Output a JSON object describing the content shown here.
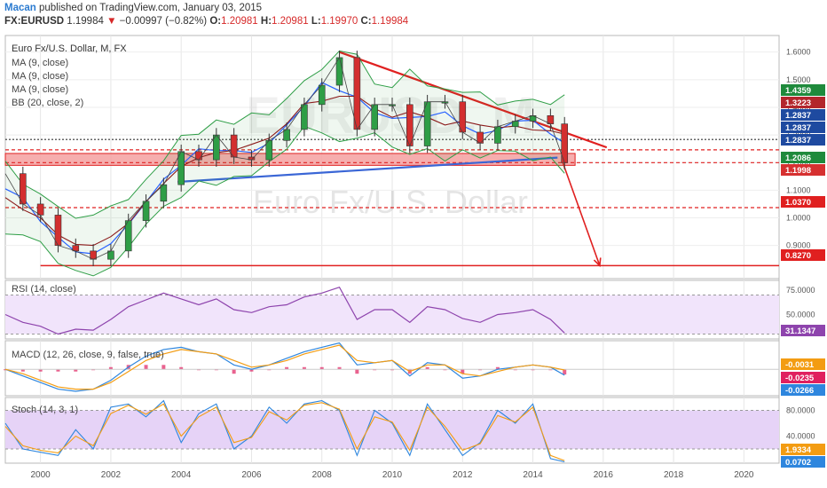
{
  "header": {
    "author": "Macan",
    "published": " published on TradingView.com, January 03, 2015",
    "symbol": "FX:EURUSD",
    "last": "1.19984",
    "arrow": "▼",
    "change": "−0.00997 (−0.82%)",
    "open_label": "O:",
    "open": "1.20981",
    "high_label": "H:",
    "high": "1.20981",
    "low_label": "L:",
    "low": "1.19970",
    "close_label": "C:",
    "close": "1.19984"
  },
  "chart_data": [
    {
      "type": "line",
      "panel": "price",
      "title": "Euro Fx/U.S. Dollar, M, FX",
      "watermark_symbol": "EURUSD, M",
      "watermark_name": "Euro Fx/U.S. Dollar",
      "legend": [
        "MA (9, close)",
        "MA (9, close)",
        "MA (9, close)",
        "BB (20, close, 2)"
      ],
      "x": [
        1999.0,
        1999.5,
        2000.0,
        2000.5,
        2001.0,
        2001.5,
        2002.0,
        2002.5,
        2003.0,
        2003.5,
        2004.0,
        2004.5,
        2005.0,
        2005.5,
        2006.0,
        2006.5,
        2007.0,
        2007.5,
        2008.0,
        2008.5,
        2009.0,
        2009.5,
        2010.0,
        2010.5,
        2011.0,
        2011.5,
        2012.0,
        2012.5,
        2013.0,
        2013.5,
        2014.0,
        2014.5,
        2014.9
      ],
      "series": [
        {
          "values": [
            1.16,
            1.05,
            1.01,
            0.9,
            0.88,
            0.85,
            0.88,
            0.99,
            1.06,
            1.12,
            1.24,
            1.21,
            1.3,
            1.22,
            1.21,
            1.28,
            1.32,
            1.41,
            1.48,
            1.58,
            1.32,
            1.41,
            1.41,
            1.26,
            1.42,
            1.42,
            1.31,
            1.27,
            1.33,
            1.35,
            1.37,
            1.34,
            1.2
          ],
          "color": "#444444"
        }
      ],
      "indicators": {
        "ma_colors": [
          "#2962ff",
          "#8b1a1a",
          "#222222"
        ],
        "bb_color": "#2e9e46"
      },
      "y_ticks": [
        "1.6000",
        "1.5000",
        "1.4000",
        "1.3000",
        "1.2000",
        "1.1000",
        "1.0000",
        "0.9000"
      ],
      "price_tags": [
        {
          "label": "1.4359",
          "color": "#1f8a3c"
        },
        {
          "label": "1.3223",
          "color": "#b3262c"
        },
        {
          "label": "1.2837",
          "color": "#1e4aa0"
        },
        {
          "label": "1.2837",
          "color": "#1e4aa0"
        },
        {
          "label": "1.2837",
          "color": "#1e4aa0"
        },
        {
          "label": "1.2086",
          "color": "#1f8a3c"
        },
        {
          "label": "1.1998",
          "color": "#d63030"
        },
        {
          "label": "1.0370",
          "color": "#e02020"
        },
        {
          "label": "0.8270",
          "color": "#e02020"
        }
      ],
      "levels": [
        {
          "price": 1.2837,
          "style": "dotted",
          "color": "#333333"
        },
        {
          "price": 1.246,
          "style": "dashed",
          "color": "#e02020"
        },
        {
          "price": 1.1998,
          "style": "dashed",
          "color": "#e02020"
        },
        {
          "price": 1.037,
          "style": "dashed",
          "color": "#e02020"
        },
        {
          "price": 0.827,
          "style": "solid",
          "color": "#e02020"
        }
      ],
      "zone": {
        "low": 1.19,
        "high": 1.233,
        "color": "#f4a0a0"
      },
      "trendlines": [
        {
          "x1": 2008.5,
          "y1": 1.6,
          "x2": 2016.1,
          "y2": 1.255,
          "color": "#e02020"
        },
        {
          "x1": 2003.9,
          "y1": 1.13,
          "x2": 2014.7,
          "y2": 1.218,
          "color": "#3a66d6"
        }
      ],
      "projection": {
        "x": [
          2014.85,
          2015.9
        ],
        "y": [
          1.2,
          0.827
        ],
        "color": "#e02020"
      }
    },
    {
      "type": "line",
      "panel": "rsi",
      "title": "RSI (14, close)",
      "x": [
        1999.0,
        1999.5,
        2000.0,
        2000.5,
        2001.0,
        2001.5,
        2002.0,
        2002.5,
        2003.0,
        2003.5,
        2004.0,
        2004.5,
        2005.0,
        2005.5,
        2006.0,
        2006.5,
        2007.0,
        2007.5,
        2008.0,
        2008.5,
        2009.0,
        2009.5,
        2010.0,
        2010.5,
        2011.0,
        2011.5,
        2012.0,
        2012.5,
        2013.0,
        2013.5,
        2014.0,
        2014.5,
        2014.9
      ],
      "series": [
        {
          "values": [
            50,
            42,
            38,
            30,
            35,
            34,
            45,
            58,
            65,
            72,
            66,
            60,
            66,
            55,
            52,
            58,
            60,
            68,
            72,
            78,
            45,
            55,
            55,
            42,
            58,
            55,
            46,
            42,
            50,
            52,
            55,
            45,
            31.1347
          ],
          "color": "#8e44ad"
        }
      ],
      "ylim": [
        25,
        85
      ],
      "bands": [
        30,
        70
      ],
      "y_ticks": [
        "75.0000",
        "50.0000"
      ],
      "last_label": "31.1347",
      "last_color": "#8e44ad"
    },
    {
      "type": "line",
      "panel": "macd",
      "title": "MACD (12, 26, close, 9, false, true)",
      "x": [
        1999.0,
        1999.5,
        2000.0,
        2000.5,
        2001.0,
        2001.5,
        2002.0,
        2002.5,
        2003.0,
        2003.5,
        2004.0,
        2004.5,
        2005.0,
        2005.5,
        2006.0,
        2006.5,
        2007.0,
        2007.5,
        2008.0,
        2008.5,
        2009.0,
        2009.5,
        2010.0,
        2010.5,
        2011.0,
        2011.5,
        2012.0,
        2012.5,
        2013.0,
        2013.5,
        2014.0,
        2014.5,
        2014.9
      ],
      "series": [
        {
          "name": "MACD",
          "values": [
            0.0,
            -0.03,
            -0.06,
            -0.09,
            -0.1,
            -0.09,
            -0.05,
            0.01,
            0.06,
            0.09,
            0.1,
            0.08,
            0.07,
            0.02,
            0.0,
            0.02,
            0.05,
            0.08,
            0.1,
            0.12,
            0.02,
            0.03,
            0.04,
            -0.03,
            0.03,
            0.02,
            -0.04,
            -0.03,
            0.0,
            0.01,
            0.02,
            0.01,
            -0.0266
          ],
          "color": "#2e86de"
        },
        {
          "name": "Signal",
          "values": [
            0.0,
            -0.02,
            -0.05,
            -0.08,
            -0.09,
            -0.09,
            -0.06,
            -0.01,
            0.04,
            0.07,
            0.09,
            0.08,
            0.07,
            0.04,
            0.01,
            0.02,
            0.04,
            0.07,
            0.09,
            0.11,
            0.04,
            0.03,
            0.04,
            -0.01,
            0.02,
            0.02,
            -0.02,
            -0.03,
            -0.01,
            0.01,
            0.02,
            0.01,
            -0.0031
          ],
          "color": "#f39c12"
        }
      ],
      "ylim": [
        -0.12,
        0.13
      ],
      "last_labels": [
        {
          "label": "-0.0031",
          "color": "#f39c12"
        },
        {
          "label": "-0.0235",
          "color": "#e0205f"
        },
        {
          "label": "-0.0266",
          "color": "#2e86de"
        }
      ]
    },
    {
      "type": "line",
      "panel": "stoch",
      "title": "Stoch (14, 3, 1)",
      "x": [
        1999.0,
        1999.5,
        2000.0,
        2000.5,
        2001.0,
        2001.5,
        2002.0,
        2002.5,
        2003.0,
        2003.5,
        2004.0,
        2004.5,
        2005.0,
        2005.5,
        2006.0,
        2006.5,
        2007.0,
        2007.5,
        2008.0,
        2008.5,
        2009.0,
        2009.5,
        2010.0,
        2010.5,
        2011.0,
        2011.5,
        2012.0,
        2012.5,
        2013.0,
        2013.5,
        2014.0,
        2014.5,
        2014.9
      ],
      "series": [
        {
          "name": "%K",
          "values": [
            60,
            20,
            15,
            10,
            50,
            20,
            85,
            90,
            70,
            95,
            30,
            75,
            90,
            20,
            40,
            85,
            60,
            90,
            95,
            80,
            10,
            80,
            60,
            10,
            90,
            50,
            10,
            30,
            80,
            60,
            90,
            5,
            0.0702
          ],
          "color": "#2e86de"
        },
        {
          "name": "%D",
          "values": [
            55,
            25,
            18,
            14,
            40,
            25,
            75,
            88,
            74,
            90,
            40,
            70,
            85,
            30,
            38,
            78,
            65,
            88,
            92,
            82,
            20,
            70,
            62,
            18,
            85,
            55,
            18,
            28,
            72,
            62,
            85,
            10,
            1.9334
          ],
          "color": "#f39c12"
        }
      ],
      "ylim": [
        -2,
        100
      ],
      "bands": [
        20,
        80
      ],
      "y_ticks": [
        "80.0000",
        "40.0000"
      ],
      "last_labels": [
        {
          "label": "1.9334",
          "color": "#f39c12"
        },
        {
          "label": "0.0702",
          "color": "#2e86de"
        }
      ]
    }
  ],
  "x_axis": {
    "ticks": [
      "2000",
      "2002",
      "2004",
      "2006",
      "2008",
      "2010",
      "2012",
      "2014",
      "2016",
      "2018",
      "2020"
    ]
  }
}
